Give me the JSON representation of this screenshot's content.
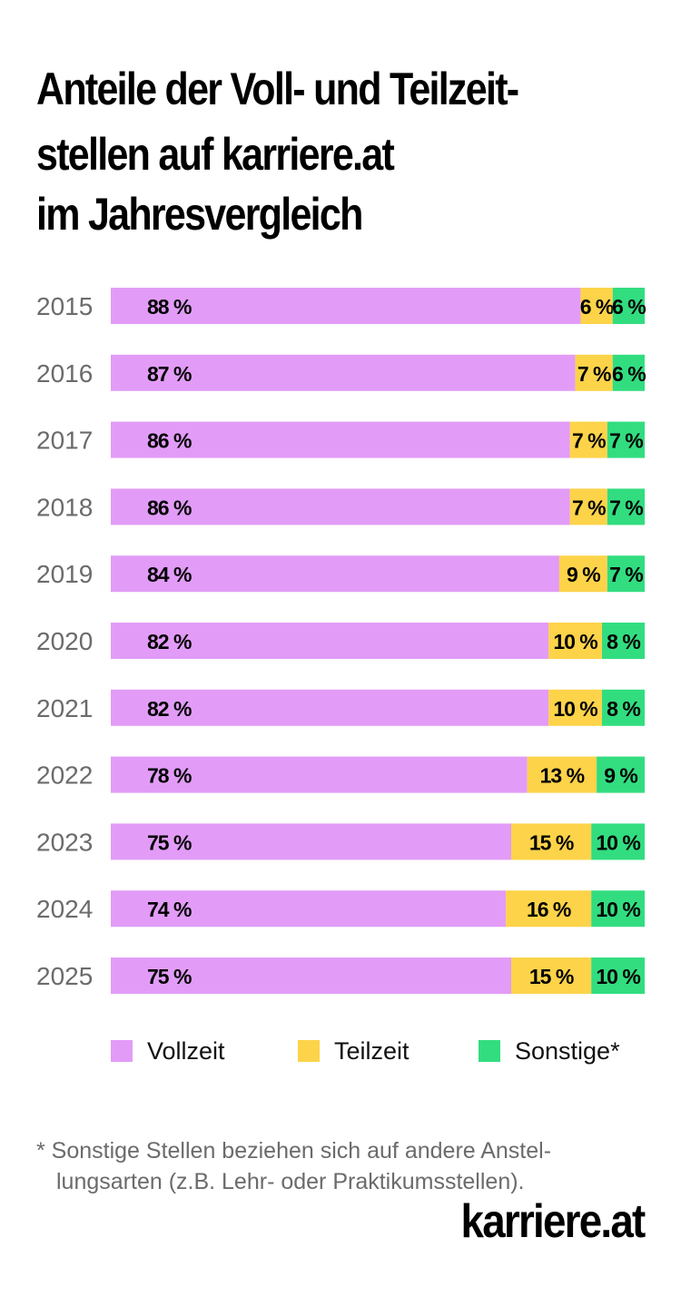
{
  "title": {
    "line1": "Anteile der Voll- und Teilzeit-",
    "line2": "stellen auf karriere.at",
    "line3": "im Jahresvergleich"
  },
  "chart_data": {
    "type": "bar",
    "orientation": "horizontal",
    "stacked": true,
    "title": "Anteile der Voll- und Teilzeitstellen auf karriere.at im Jahresvergleich",
    "categories": [
      "2015",
      "2016",
      "2017",
      "2018",
      "2019",
      "2020",
      "2021",
      "2022",
      "2023",
      "2024",
      "2025"
    ],
    "series": [
      {
        "name": "Vollzeit",
        "color": "#e29cf7",
        "values": [
          88,
          87,
          86,
          86,
          84,
          82,
          82,
          78,
          75,
          74,
          75
        ]
      },
      {
        "name": "Teilzeit",
        "color": "#fdd349",
        "values": [
          6,
          7,
          7,
          7,
          9,
          10,
          10,
          13,
          15,
          16,
          15
        ]
      },
      {
        "name": "Sonstige*",
        "color": "#32dd80",
        "values": [
          6,
          6,
          7,
          7,
          7,
          8,
          8,
          9,
          10,
          10,
          10
        ]
      }
    ],
    "value_suffix": " %",
    "xlim": [
      0,
      100
    ],
    "grid": false,
    "legend_position": "bottom"
  },
  "legend": {
    "vollzeit": "Vollzeit",
    "teilzeit": "Teilzeit",
    "sonstige": "Sonstige*"
  },
  "footnote": {
    "line1": "* Sonstige Stellen beziehen sich auf andere Anstel-",
    "line2": "lungsarten (z.B. Lehr- oder Praktikumsstellen)."
  },
  "brand": "karriere.at"
}
